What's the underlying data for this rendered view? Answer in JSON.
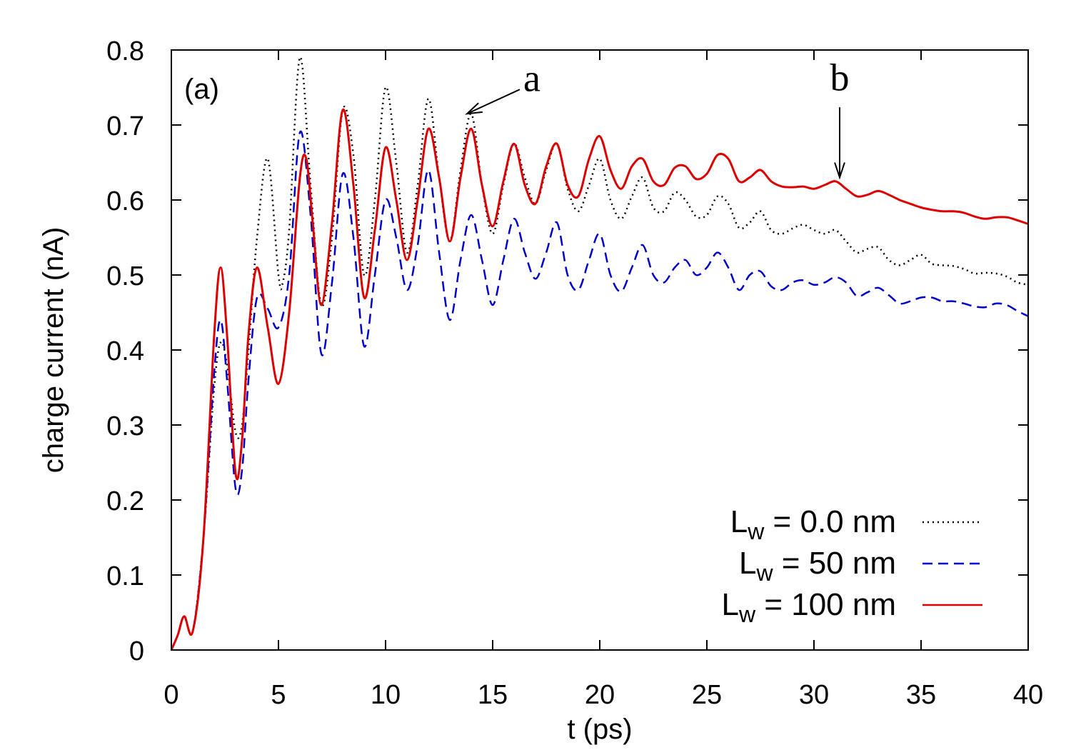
{
  "chart_data": {
    "type": "line",
    "title": "",
    "panel_label": "(a)",
    "xlabel": "t (ps)",
    "ylabel": "charge current (nA)",
    "xlim": [
      0,
      40
    ],
    "ylim": [
      0,
      0.8
    ],
    "xticks": [
      "0",
      "5",
      "10",
      "15",
      "20",
      "25",
      "30",
      "35",
      "40"
    ],
    "yticks": [
      "0",
      "0.1",
      "0.2",
      "0.3",
      "0.4",
      "0.5",
      "0.6",
      "0.7",
      "0.8"
    ],
    "grid": false,
    "legend_position": "bottom-right",
    "series": [
      {
        "name": "L_w = 0.0 nm",
        "legend_prefix": "L",
        "legend_sub": "w",
        "legend_suffix": " = 0.0 nm",
        "color": "#000000",
        "style": "dotted",
        "points": [
          [
            0,
            0
          ],
          [
            0.3,
            0.02
          ],
          [
            0.6,
            0.045
          ],
          [
            1.0,
            0.025
          ],
          [
            1.5,
            0.15
          ],
          [
            2.0,
            0.35
          ],
          [
            2.3,
            0.41
          ],
          [
            2.6,
            0.38
          ],
          [
            3.0,
            0.29
          ],
          [
            3.3,
            0.3
          ],
          [
            3.6,
            0.4
          ],
          [
            4.0,
            0.55
          ],
          [
            4.5,
            0.655
          ],
          [
            5.0,
            0.5
          ],
          [
            5.2,
            0.49
          ],
          [
            5.5,
            0.56
          ],
          [
            6.0,
            0.79
          ],
          [
            6.5,
            0.62
          ],
          [
            7.0,
            0.46
          ],
          [
            7.5,
            0.55
          ],
          [
            8.0,
            0.72
          ],
          [
            8.5,
            0.66
          ],
          [
            9.0,
            0.5
          ],
          [
            9.5,
            0.6
          ],
          [
            10.0,
            0.75
          ],
          [
            10.5,
            0.65
          ],
          [
            11.0,
            0.53
          ],
          [
            11.5,
            0.62
          ],
          [
            12.0,
            0.735
          ],
          [
            12.5,
            0.63
          ],
          [
            13.0,
            0.545
          ],
          [
            13.5,
            0.64
          ],
          [
            14.0,
            0.715
          ],
          [
            14.5,
            0.62
          ],
          [
            15.0,
            0.555
          ],
          [
            15.5,
            0.62
          ],
          [
            16.0,
            0.675
          ],
          [
            16.5,
            0.63
          ],
          [
            17.0,
            0.595
          ],
          [
            17.5,
            0.64
          ],
          [
            18.0,
            0.675
          ],
          [
            18.5,
            0.615
          ],
          [
            19.0,
            0.585
          ],
          [
            19.5,
            0.62
          ],
          [
            20.0,
            0.655
          ],
          [
            20.5,
            0.6
          ],
          [
            21.0,
            0.575
          ],
          [
            21.5,
            0.605
          ],
          [
            22.0,
            0.63
          ],
          [
            22.5,
            0.59
          ],
          [
            23.0,
            0.585
          ],
          [
            23.5,
            0.61
          ],
          [
            24.0,
            0.6
          ],
          [
            24.5,
            0.578
          ],
          [
            25.0,
            0.58
          ],
          [
            25.5,
            0.605
          ],
          [
            26.0,
            0.595
          ],
          [
            26.5,
            0.563
          ],
          [
            27.0,
            0.57
          ],
          [
            27.5,
            0.585
          ],
          [
            28.0,
            0.56
          ],
          [
            28.5,
            0.555
          ],
          [
            29.0,
            0.562
          ],
          [
            29.5,
            0.567
          ],
          [
            30.0,
            0.56
          ],
          [
            30.5,
            0.555
          ],
          [
            31.0,
            0.56
          ],
          [
            31.5,
            0.545
          ],
          [
            32.0,
            0.53
          ],
          [
            32.5,
            0.535
          ],
          [
            33.0,
            0.537
          ],
          [
            33.5,
            0.52
          ],
          [
            34.0,
            0.513
          ],
          [
            34.5,
            0.52
          ],
          [
            35.0,
            0.527
          ],
          [
            35.5,
            0.515
          ],
          [
            36.0,
            0.513
          ],
          [
            36.5,
            0.512
          ],
          [
            37.0,
            0.508
          ],
          [
            37.5,
            0.502
          ],
          [
            38.0,
            0.503
          ],
          [
            38.5,
            0.502
          ],
          [
            39.0,
            0.498
          ],
          [
            39.5,
            0.49
          ],
          [
            40.0,
            0.487
          ]
        ]
      },
      {
        "name": "L_w = 50 nm",
        "legend_prefix": "L",
        "legend_sub": "w",
        "legend_suffix": " = 50 nm",
        "color": "#0000cc",
        "style": "dashed",
        "points": [
          [
            0,
            0
          ],
          [
            0.3,
            0.02
          ],
          [
            0.6,
            0.045
          ],
          [
            1.0,
            0.025
          ],
          [
            1.5,
            0.15
          ],
          [
            2.0,
            0.37
          ],
          [
            2.3,
            0.44
          ],
          [
            2.6,
            0.36
          ],
          [
            3.0,
            0.215
          ],
          [
            3.3,
            0.24
          ],
          [
            3.6,
            0.36
          ],
          [
            4.0,
            0.47
          ],
          [
            4.5,
            0.455
          ],
          [
            5.0,
            0.43
          ],
          [
            5.5,
            0.5
          ],
          [
            6.0,
            0.69
          ],
          [
            6.5,
            0.58
          ],
          [
            7.0,
            0.395
          ],
          [
            7.5,
            0.49
          ],
          [
            8.0,
            0.635
          ],
          [
            8.5,
            0.55
          ],
          [
            9.0,
            0.405
          ],
          [
            9.5,
            0.5
          ],
          [
            10.0,
            0.6
          ],
          [
            10.5,
            0.55
          ],
          [
            11.0,
            0.48
          ],
          [
            11.5,
            0.54
          ],
          [
            12.0,
            0.64
          ],
          [
            12.5,
            0.53
          ],
          [
            13.0,
            0.44
          ],
          [
            13.5,
            0.52
          ],
          [
            14.0,
            0.58
          ],
          [
            14.5,
            0.52
          ],
          [
            15.0,
            0.46
          ],
          [
            15.5,
            0.52
          ],
          [
            16.0,
            0.575
          ],
          [
            16.5,
            0.53
          ],
          [
            17.0,
            0.495
          ],
          [
            17.5,
            0.53
          ],
          [
            18.0,
            0.57
          ],
          [
            18.5,
            0.5
          ],
          [
            19.0,
            0.48
          ],
          [
            19.5,
            0.52
          ],
          [
            20.0,
            0.555
          ],
          [
            20.5,
            0.5
          ],
          [
            21.0,
            0.478
          ],
          [
            21.5,
            0.51
          ],
          [
            22.0,
            0.54
          ],
          [
            22.5,
            0.5
          ],
          [
            23.0,
            0.49
          ],
          [
            23.5,
            0.51
          ],
          [
            24.0,
            0.52
          ],
          [
            24.5,
            0.5
          ],
          [
            25.0,
            0.51
          ],
          [
            25.5,
            0.53
          ],
          [
            26.0,
            0.51
          ],
          [
            26.5,
            0.48
          ],
          [
            27.0,
            0.5
          ],
          [
            27.5,
            0.505
          ],
          [
            28.0,
            0.485
          ],
          [
            28.5,
            0.48
          ],
          [
            29.0,
            0.49
          ],
          [
            29.5,
            0.493
          ],
          [
            30.0,
            0.487
          ],
          [
            30.5,
            0.49
          ],
          [
            31.0,
            0.497
          ],
          [
            31.5,
            0.49
          ],
          [
            32.0,
            0.472
          ],
          [
            32.5,
            0.477
          ],
          [
            33.0,
            0.483
          ],
          [
            33.5,
            0.473
          ],
          [
            34.0,
            0.462
          ],
          [
            34.5,
            0.465
          ],
          [
            35.0,
            0.47
          ],
          [
            35.5,
            0.47
          ],
          [
            36.0,
            0.465
          ],
          [
            36.5,
            0.465
          ],
          [
            37.0,
            0.462
          ],
          [
            37.5,
            0.458
          ],
          [
            38.0,
            0.457
          ],
          [
            38.5,
            0.462
          ],
          [
            39.0,
            0.46
          ],
          [
            39.5,
            0.452
          ],
          [
            40.0,
            0.445
          ]
        ]
      },
      {
        "name": "L_w = 100 nm",
        "legend_prefix": "L",
        "legend_sub": "w",
        "legend_suffix": " = 100 nm",
        "color": "#dd0000",
        "style": "solid",
        "points": [
          [
            0,
            0
          ],
          [
            0.3,
            0.02
          ],
          [
            0.6,
            0.045
          ],
          [
            1.0,
            0.025
          ],
          [
            1.5,
            0.15
          ],
          [
            2.0,
            0.42
          ],
          [
            2.3,
            0.51
          ],
          [
            2.6,
            0.42
          ],
          [
            3.0,
            0.235
          ],
          [
            3.3,
            0.28
          ],
          [
            3.6,
            0.42
          ],
          [
            4.0,
            0.51
          ],
          [
            4.5,
            0.43
          ],
          [
            5.0,
            0.355
          ],
          [
            5.5,
            0.45
          ],
          [
            6.0,
            0.63
          ],
          [
            6.3,
            0.655
          ],
          [
            6.6,
            0.57
          ],
          [
            7.0,
            0.46
          ],
          [
            7.5,
            0.57
          ],
          [
            8.0,
            0.72
          ],
          [
            8.5,
            0.62
          ],
          [
            9.0,
            0.47
          ],
          [
            9.5,
            0.56
          ],
          [
            10.0,
            0.67
          ],
          [
            10.5,
            0.6
          ],
          [
            11.0,
            0.52
          ],
          [
            11.5,
            0.6
          ],
          [
            12.0,
            0.695
          ],
          [
            12.5,
            0.63
          ],
          [
            13.0,
            0.545
          ],
          [
            13.5,
            0.63
          ],
          [
            14.0,
            0.695
          ],
          [
            14.5,
            0.62
          ],
          [
            15.0,
            0.565
          ],
          [
            15.5,
            0.625
          ],
          [
            16.0,
            0.675
          ],
          [
            16.5,
            0.62
          ],
          [
            17.0,
            0.595
          ],
          [
            17.5,
            0.645
          ],
          [
            18.0,
            0.675
          ],
          [
            18.5,
            0.62
          ],
          [
            19.0,
            0.605
          ],
          [
            19.5,
            0.655
          ],
          [
            20.0,
            0.685
          ],
          [
            20.5,
            0.64
          ],
          [
            21.0,
            0.615
          ],
          [
            21.5,
            0.645
          ],
          [
            22.0,
            0.655
          ],
          [
            22.5,
            0.625
          ],
          [
            23.0,
            0.62
          ],
          [
            23.5,
            0.643
          ],
          [
            24.0,
            0.645
          ],
          [
            24.5,
            0.628
          ],
          [
            25.0,
            0.635
          ],
          [
            25.5,
            0.66
          ],
          [
            26.0,
            0.655
          ],
          [
            26.5,
            0.625
          ],
          [
            27.0,
            0.63
          ],
          [
            27.5,
            0.64
          ],
          [
            28.0,
            0.625
          ],
          [
            28.5,
            0.618
          ],
          [
            29.0,
            0.617
          ],
          [
            29.5,
            0.618
          ],
          [
            30.0,
            0.615
          ],
          [
            30.5,
            0.62
          ],
          [
            31.0,
            0.625
          ],
          [
            31.5,
            0.615
          ],
          [
            32.0,
            0.605
          ],
          [
            32.5,
            0.607
          ],
          [
            33.0,
            0.612
          ],
          [
            33.5,
            0.607
          ],
          [
            34.0,
            0.6
          ],
          [
            34.5,
            0.595
          ],
          [
            35.0,
            0.59
          ],
          [
            35.5,
            0.587
          ],
          [
            36.0,
            0.585
          ],
          [
            36.5,
            0.585
          ],
          [
            37.0,
            0.583
          ],
          [
            37.5,
            0.578
          ],
          [
            38.0,
            0.575
          ],
          [
            38.5,
            0.577
          ],
          [
            39.0,
            0.577
          ],
          [
            39.5,
            0.573
          ],
          [
            40.0,
            0.568
          ]
        ]
      }
    ],
    "annotations": [
      {
        "text": "a",
        "target": [
          13.8,
          0.715
        ],
        "label_at": [
          17.0,
          0.755
        ]
      },
      {
        "text": "b",
        "target": [
          31.2,
          0.63
        ],
        "label_at": [
          31.2,
          0.735
        ]
      }
    ]
  }
}
